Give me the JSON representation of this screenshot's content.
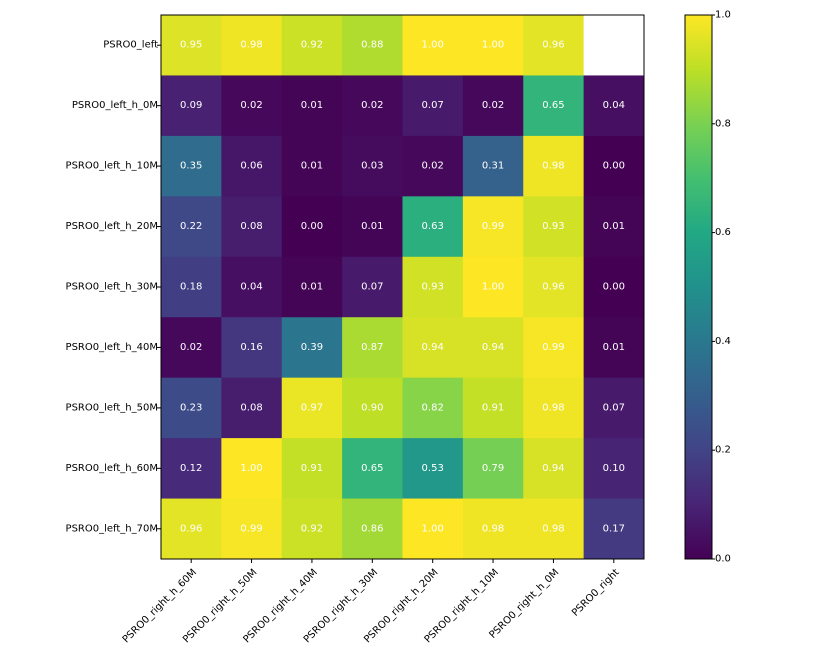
{
  "chart_data": {
    "type": "heatmap",
    "title": "",
    "xlabel": "",
    "ylabel": "",
    "x_categories": [
      "PSRO0_right_h_60M",
      "PSRO0_right_h_50M",
      "PSRO0_right_h_40M",
      "PSRO0_right_h_30M",
      "PSRO0_right_h_20M",
      "PSRO0_right_h_10M",
      "PSRO0_right_h_0M",
      "PSRO0_right"
    ],
    "y_categories": [
      "PSRO0_left",
      "PSRO0_left_h_0M",
      "PSRO0_left_h_10M",
      "PSRO0_left_h_20M",
      "PSRO0_left_h_30M",
      "PSRO0_left_h_40M",
      "PSRO0_left_h_50M",
      "PSRO0_left_h_60M",
      "PSRO0_left_h_70M"
    ],
    "values": [
      [
        0.95,
        0.98,
        0.92,
        0.88,
        1.0,
        1.0,
        0.96,
        null
      ],
      [
        0.09,
        0.02,
        0.01,
        0.02,
        0.07,
        0.02,
        0.65,
        0.04
      ],
      [
        0.35,
        0.06,
        0.01,
        0.03,
        0.02,
        0.31,
        0.98,
        0.0
      ],
      [
        0.22,
        0.08,
        0.0,
        0.01,
        0.63,
        0.99,
        0.93,
        0.01
      ],
      [
        0.18,
        0.04,
        0.01,
        0.07,
        0.93,
        1.0,
        0.96,
        0.0
      ],
      [
        0.02,
        0.16,
        0.39,
        0.87,
        0.94,
        0.94,
        0.99,
        0.01
      ],
      [
        0.23,
        0.08,
        0.97,
        0.9,
        0.82,
        0.91,
        0.98,
        0.07
      ],
      [
        0.12,
        1.0,
        0.91,
        0.65,
        0.53,
        0.79,
        0.94,
        0.1
      ],
      [
        0.96,
        0.99,
        0.92,
        0.86,
        1.0,
        0.98,
        0.98,
        0.17
      ]
    ],
    "value_format": "0.00",
    "colormap": "viridis",
    "vmin": 0.0,
    "vmax": 1.0,
    "colorbar": {
      "ticks": [
        0.0,
        0.2,
        0.4,
        0.6,
        0.8,
        1.0
      ],
      "tick_labels": [
        "0.0",
        "0.2",
        "0.4",
        "0.6",
        "0.8",
        "1.0"
      ]
    },
    "grid": false,
    "x_tick_rotation": "45 degrees, right-aligned"
  }
}
